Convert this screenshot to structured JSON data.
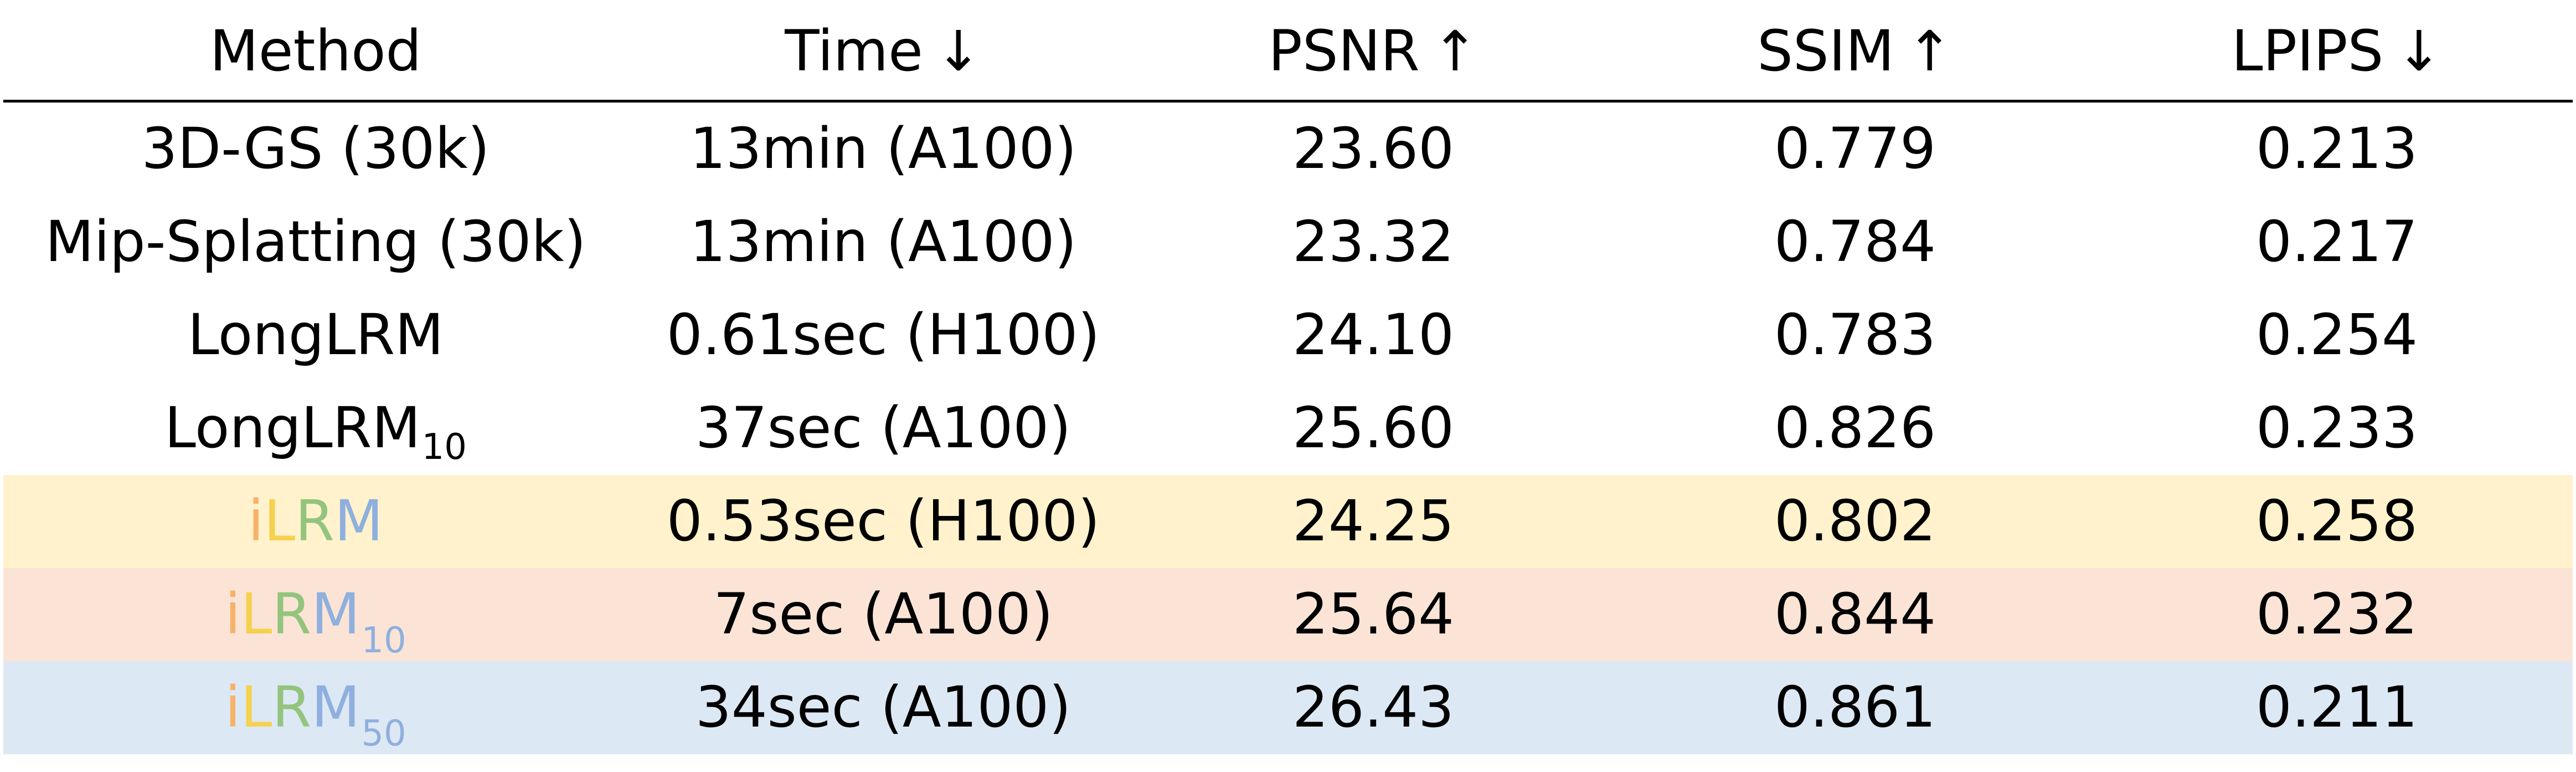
{
  "header": {
    "method": "Method",
    "time": "Time",
    "time_arrow": "↓",
    "psnr": "PSNR",
    "psnr_arrow": "↑",
    "ssim": "SSIM",
    "ssim_arrow": "↑",
    "lpips": "LPIPS",
    "lpips_arrow": "↓"
  },
  "rows": [
    {
      "method": "3D-GS (30k)",
      "method_sub": "",
      "time": "13min (A100)",
      "psnr": "23.60",
      "ssim": "0.779",
      "lpips": "0.213"
    },
    {
      "method": "Mip-Splatting (30k)",
      "method_sub": "",
      "time": "13min (A100)",
      "psnr": "23.32",
      "ssim": "0.784",
      "lpips": "0.217"
    },
    {
      "method": "LongLRM",
      "method_sub": "",
      "time": "0.61sec (H100)",
      "psnr": "24.10",
      "ssim": "0.783",
      "lpips": "0.254"
    },
    {
      "method": "LongLRM",
      "method_sub": "10",
      "time": "37sec (A100)",
      "psnr": "25.60",
      "ssim": "0.826",
      "lpips": "0.233"
    },
    {
      "method_letters": [
        "i",
        "L",
        "R",
        "M"
      ],
      "method_sub": "",
      "time": "0.53sec (H100)",
      "psnr": "24.25",
      "ssim": "0.802",
      "lpips": "0.258",
      "bg": "#fff2cc"
    },
    {
      "method_letters": [
        "i",
        "L",
        "R",
        "M"
      ],
      "method_sub": "10",
      "time": "7sec (A100)",
      "psnr": "25.64",
      "ssim": "0.844",
      "lpips": "0.232",
      "bg": "#fbe4d6"
    },
    {
      "method_letters": [
        "i",
        "L",
        "R",
        "M"
      ],
      "method_sub": "50",
      "time": "34sec (A100)",
      "psnr": "26.43",
      "ssim": "0.861",
      "lpips": "0.211",
      "bg": "#dde8f5"
    }
  ],
  "colors": {
    "brand_i": "#f7b26a",
    "brand_L": "#f5d14e",
    "brand_R": "#93c47d",
    "brand_M": "#8fb0de",
    "highlight_1": "#fff2cc",
    "highlight_2": "#fbe4d6",
    "highlight_3": "#dde8f5"
  }
}
